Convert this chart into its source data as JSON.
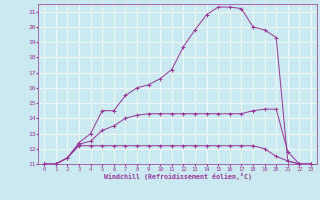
{
  "xlabel": "Windchill (Refroidissement éolien,°C)",
  "bg_color": "#cbe9f0",
  "grid_color": "#ffffff",
  "line_color": "#993399",
  "xlim": [
    -0.5,
    23.5
  ],
  "ylim": [
    11,
    21.5
  ],
  "xticks": [
    0,
    1,
    2,
    3,
    4,
    5,
    6,
    7,
    8,
    9,
    10,
    11,
    12,
    13,
    14,
    15,
    16,
    17,
    18,
    19,
    20,
    21,
    22,
    23
  ],
  "yticks": [
    11,
    12,
    13,
    14,
    15,
    16,
    17,
    18,
    19,
    20,
    21
  ],
  "figsize": [
    3.2,
    2.0
  ],
  "dpi": 100,
  "line1_x": [
    0,
    1,
    2,
    3,
    4,
    5,
    6,
    7,
    8,
    9,
    10,
    11,
    12,
    13,
    14,
    15,
    16,
    17,
    18,
    19,
    20,
    21,
    22,
    23
  ],
  "line1_y": [
    11,
    11,
    11.4,
    12.2,
    12.2,
    12.2,
    12.2,
    12.2,
    12.2,
    12.2,
    12.2,
    12.2,
    12.2,
    12.2,
    12.2,
    12.2,
    12.2,
    12.2,
    12.2,
    12.0,
    11.5,
    11.2,
    11,
    11
  ],
  "line2_x": [
    0,
    1,
    2,
    3,
    4,
    5,
    6,
    7,
    8,
    9,
    10,
    11,
    12,
    13,
    14,
    15,
    16,
    17,
    18,
    19,
    20,
    21,
    22,
    23
  ],
  "line2_y": [
    11,
    11,
    11.4,
    12.3,
    12.5,
    13.2,
    13.5,
    14.0,
    14.2,
    14.3,
    14.3,
    14.3,
    14.3,
    14.3,
    14.3,
    14.3,
    14.3,
    14.3,
    14.5,
    14.6,
    14.6,
    11.8,
    11,
    11
  ],
  "line3_x": [
    0,
    1,
    2,
    3,
    4,
    5,
    6,
    7,
    8,
    9,
    10,
    11,
    12,
    13,
    14,
    15,
    16,
    17,
    18,
    19,
    20,
    21,
    22,
    23
  ],
  "line3_y": [
    11,
    11,
    11.4,
    12.4,
    13.0,
    14.5,
    14.5,
    15.5,
    16.0,
    16.2,
    16.6,
    17.2,
    18.7,
    19.8,
    20.8,
    21.3,
    21.3,
    21.2,
    20.0,
    19.8,
    19.3,
    11.2,
    11,
    11
  ]
}
